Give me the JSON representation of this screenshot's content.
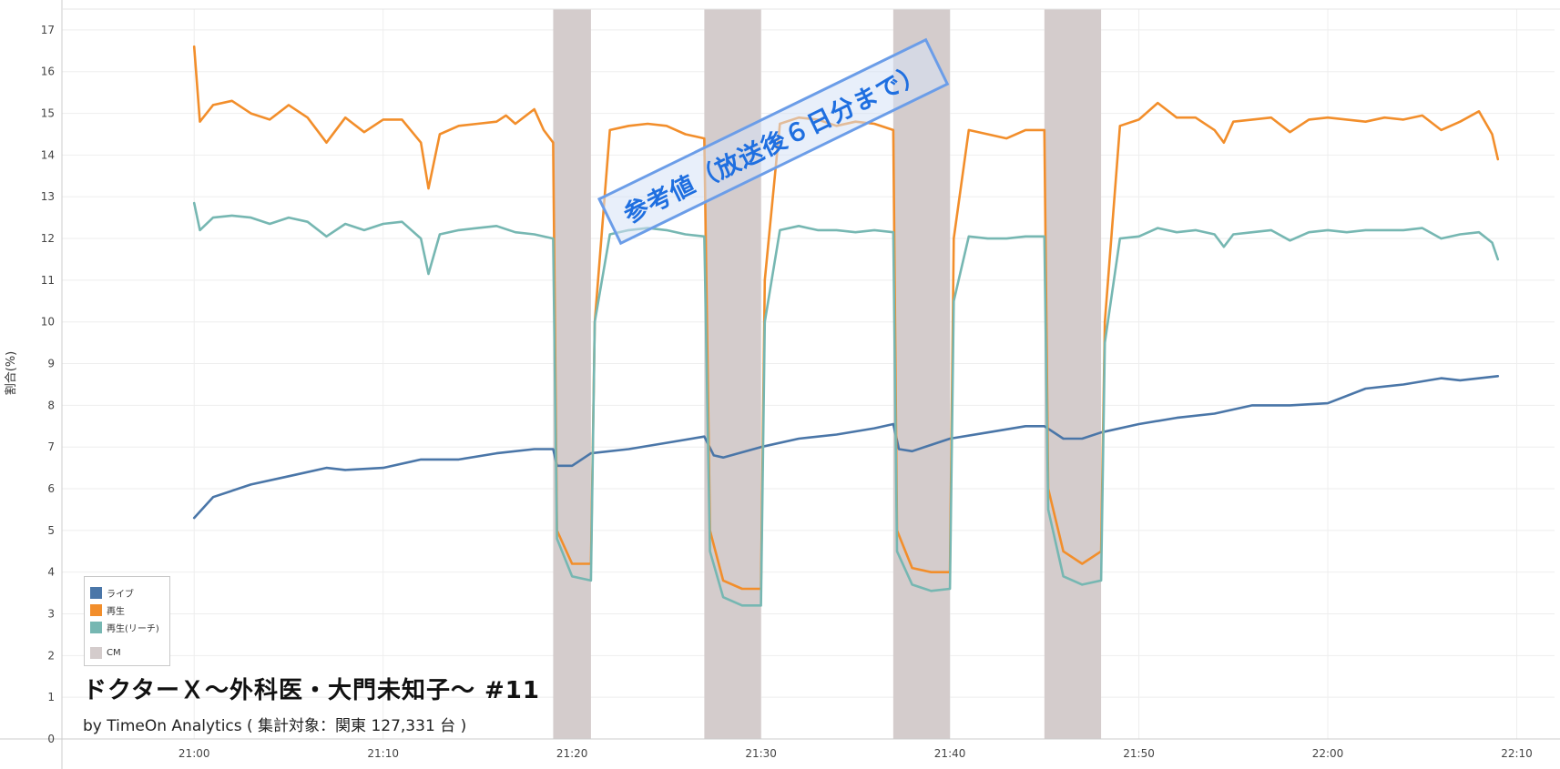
{
  "colors": {
    "live": "#4a76a8",
    "replay": "#f28e2b",
    "reach": "#76b7b2",
    "cm": "#d4cccc",
    "axis": "#cccccc",
    "grid": "#eeeeee",
    "stamp": "#1f6fe0"
  },
  "title": "ドクターＸ～外科医・大門未知子～ #11",
  "subtitle": "by TimeOn Analytics ( 集計対象：関東 127,331 台 )",
  "stamp_text": "参考値（放送後６日分まで）",
  "legend": {
    "items": [
      {
        "label": "ライブ",
        "color": "#4a76a8"
      },
      {
        "label": "再生",
        "color": "#f28e2b"
      },
      {
        "label": "再生(リーチ)",
        "color": "#76b7b2"
      },
      {
        "label": "CM",
        "color": "#d4cccc"
      }
    ]
  },
  "chart_data": {
    "type": "line",
    "title": "ドクターＸ～外科医・大門未知子～ #11",
    "xlabel": "",
    "ylabel": "割合(%)",
    "xlim": [
      "20:53",
      "22:12"
    ],
    "ylim": [
      0,
      17.5
    ],
    "x_ticks": [
      "21:00",
      "21:10",
      "21:20",
      "21:30",
      "21:40",
      "21:50",
      "22:00",
      "22:10"
    ],
    "y_ticks": [
      0,
      1,
      2,
      3,
      4,
      5,
      6,
      7,
      8,
      9,
      10,
      11,
      12,
      13,
      14,
      15,
      16,
      17
    ],
    "grid": true,
    "legend_position": "bottom-left",
    "cm_breaks": [
      {
        "start": "21:19",
        "end": "21:21"
      },
      {
        "start": "21:27",
        "end": "21:30"
      },
      {
        "start": "21:37",
        "end": "21:40"
      },
      {
        "start": "21:45",
        "end": "21:48"
      }
    ],
    "series": [
      {
        "name": "ライブ",
        "points": [
          [
            "21:00",
            5.3
          ],
          [
            "21:01",
            5.8
          ],
          [
            "21:03",
            6.1
          ],
          [
            "21:05",
            6.3
          ],
          [
            "21:07",
            6.5
          ],
          [
            "21:08",
            6.45
          ],
          [
            "21:10",
            6.5
          ],
          [
            "21:12",
            6.7
          ],
          [
            "21:14",
            6.7
          ],
          [
            "21:16",
            6.85
          ],
          [
            "21:18",
            6.95
          ],
          [
            "21:19",
            6.95
          ],
          [
            "21:19.2",
            6.55
          ],
          [
            "21:20",
            6.55
          ],
          [
            "21:21",
            6.85
          ],
          [
            "21:23",
            6.95
          ],
          [
            "21:25",
            7.1
          ],
          [
            "21:27",
            7.25
          ],
          [
            "21:27.5",
            6.8
          ],
          [
            "21:28",
            6.75
          ],
          [
            "21:30",
            7.0
          ],
          [
            "21:32",
            7.2
          ],
          [
            "21:34",
            7.3
          ],
          [
            "21:36",
            7.45
          ],
          [
            "21:37",
            7.55
          ],
          [
            "21:37.3",
            6.95
          ],
          [
            "21:38",
            6.9
          ],
          [
            "21:40",
            7.2
          ],
          [
            "21:42",
            7.35
          ],
          [
            "21:44",
            7.5
          ],
          [
            "21:45",
            7.5
          ],
          [
            "21:46",
            7.2
          ],
          [
            "21:47",
            7.2
          ],
          [
            "21:48",
            7.35
          ],
          [
            "21:50",
            7.55
          ],
          [
            "21:52",
            7.7
          ],
          [
            "21:54",
            7.8
          ],
          [
            "21:56",
            8.0
          ],
          [
            "21:58",
            8.0
          ],
          [
            "22:00",
            8.05
          ],
          [
            "22:02",
            8.4
          ],
          [
            "22:04",
            8.5
          ],
          [
            "22:06",
            8.65
          ],
          [
            "22:07",
            8.6
          ],
          [
            "22:09",
            8.7
          ]
        ]
      },
      {
        "name": "再生",
        "points": [
          [
            "21:00",
            16.6
          ],
          [
            "21:00.3",
            14.8
          ],
          [
            "21:01",
            15.2
          ],
          [
            "21:02",
            15.3
          ],
          [
            "21:03",
            15.0
          ],
          [
            "21:04",
            14.85
          ],
          [
            "21:05",
            15.2
          ],
          [
            "21:06",
            14.9
          ],
          [
            "21:07",
            14.3
          ],
          [
            "21:08",
            14.9
          ],
          [
            "21:09",
            14.55
          ],
          [
            "21:10",
            14.85
          ],
          [
            "21:11",
            14.85
          ],
          [
            "21:12",
            14.3
          ],
          [
            "21:12.4",
            13.2
          ],
          [
            "21:13",
            14.5
          ],
          [
            "21:14",
            14.7
          ],
          [
            "21:15",
            14.75
          ],
          [
            "21:16",
            14.8
          ],
          [
            "21:16.5",
            14.95
          ],
          [
            "21:17",
            14.75
          ],
          [
            "21:18",
            15.1
          ],
          [
            "21:18.5",
            14.6
          ],
          [
            "21:19",
            14.3
          ],
          [
            "21:19.2",
            5.0
          ],
          [
            "21:20",
            4.2
          ],
          [
            "21:21",
            4.2
          ],
          [
            "21:21.2",
            10.0
          ],
          [
            "21:22",
            14.6
          ],
          [
            "21:23",
            14.7
          ],
          [
            "21:24",
            14.75
          ],
          [
            "21:25",
            14.7
          ],
          [
            "21:26",
            14.5
          ],
          [
            "21:27",
            14.4
          ],
          [
            "21:27.3",
            5.0
          ],
          [
            "21:28",
            3.8
          ],
          [
            "21:29",
            3.6
          ],
          [
            "21:30",
            3.6
          ],
          [
            "21:30.2",
            11.0
          ],
          [
            "21:31",
            14.75
          ],
          [
            "21:32",
            14.9
          ],
          [
            "21:33",
            14.85
          ],
          [
            "21:34",
            14.7
          ],
          [
            "21:35",
            14.8
          ],
          [
            "21:36",
            14.75
          ],
          [
            "21:37",
            14.6
          ],
          [
            "21:37.2",
            5.0
          ],
          [
            "21:38",
            4.1
          ],
          [
            "21:39",
            4.0
          ],
          [
            "21:40",
            4.0
          ],
          [
            "21:40.2",
            12.0
          ],
          [
            "21:41",
            14.6
          ],
          [
            "21:42",
            14.5
          ],
          [
            "21:43",
            14.4
          ],
          [
            "21:44",
            14.6
          ],
          [
            "21:45",
            14.6
          ],
          [
            "21:45.2",
            6.0
          ],
          [
            "21:46",
            4.5
          ],
          [
            "21:47",
            4.2
          ],
          [
            "21:48",
            4.5
          ],
          [
            "21:48.2",
            10.0
          ],
          [
            "21:49",
            14.7
          ],
          [
            "21:50",
            14.85
          ],
          [
            "21:51",
            15.25
          ],
          [
            "21:52",
            14.9
          ],
          [
            "21:53",
            14.9
          ],
          [
            "21:54",
            14.6
          ],
          [
            "21:54.5",
            14.3
          ],
          [
            "21:55",
            14.8
          ],
          [
            "21:56",
            14.85
          ],
          [
            "21:57",
            14.9
          ],
          [
            "21:58",
            14.55
          ],
          [
            "21:59",
            14.85
          ],
          [
            "22:00",
            14.9
          ],
          [
            "22:01",
            14.85
          ],
          [
            "22:02",
            14.8
          ],
          [
            "22:03",
            14.9
          ],
          [
            "22:04",
            14.85
          ],
          [
            "22:05",
            14.95
          ],
          [
            "22:06",
            14.6
          ],
          [
            "22:07",
            14.8
          ],
          [
            "22:08",
            15.05
          ],
          [
            "22:08.7",
            14.5
          ],
          [
            "22:09",
            13.9
          ]
        ]
      },
      {
        "name": "再生(リーチ)",
        "points": [
          [
            "21:00",
            12.85
          ],
          [
            "21:00.3",
            12.2
          ],
          [
            "21:01",
            12.5
          ],
          [
            "21:02",
            12.55
          ],
          [
            "21:03",
            12.5
          ],
          [
            "21:04",
            12.35
          ],
          [
            "21:05",
            12.5
          ],
          [
            "21:06",
            12.4
          ],
          [
            "21:07",
            12.05
          ],
          [
            "21:08",
            12.35
          ],
          [
            "21:09",
            12.2
          ],
          [
            "21:10",
            12.35
          ],
          [
            "21:11",
            12.4
          ],
          [
            "21:12",
            12.0
          ],
          [
            "21:12.4",
            11.15
          ],
          [
            "21:13",
            12.1
          ],
          [
            "21:14",
            12.2
          ],
          [
            "21:15",
            12.25
          ],
          [
            "21:16",
            12.3
          ],
          [
            "21:17",
            12.15
          ],
          [
            "21:18",
            12.1
          ],
          [
            "21:19",
            12.0
          ],
          [
            "21:19.2",
            4.8
          ],
          [
            "21:20",
            3.9
          ],
          [
            "21:21",
            3.8
          ],
          [
            "21:21.2",
            10.0
          ],
          [
            "21:22",
            12.1
          ],
          [
            "21:23",
            12.2
          ],
          [
            "21:24",
            12.25
          ],
          [
            "21:25",
            12.2
          ],
          [
            "21:26",
            12.1
          ],
          [
            "21:27",
            12.05
          ],
          [
            "21:27.3",
            4.5
          ],
          [
            "21:28",
            3.4
          ],
          [
            "21:29",
            3.2
          ],
          [
            "21:30",
            3.2
          ],
          [
            "21:30.2",
            10.0
          ],
          [
            "21:31",
            12.2
          ],
          [
            "21:32",
            12.3
          ],
          [
            "21:33",
            12.2
          ],
          [
            "21:34",
            12.2
          ],
          [
            "21:35",
            12.15
          ],
          [
            "21:36",
            12.2
          ],
          [
            "21:37",
            12.15
          ],
          [
            "21:37.2",
            4.5
          ],
          [
            "21:38",
            3.7
          ],
          [
            "21:39",
            3.55
          ],
          [
            "21:40",
            3.6
          ],
          [
            "21:40.2",
            10.5
          ],
          [
            "21:41",
            12.05
          ],
          [
            "21:42",
            12.0
          ],
          [
            "21:43",
            12.0
          ],
          [
            "21:44",
            12.05
          ],
          [
            "21:45",
            12.05
          ],
          [
            "21:45.2",
            5.5
          ],
          [
            "21:46",
            3.9
          ],
          [
            "21:47",
            3.7
          ],
          [
            "21:48",
            3.8
          ],
          [
            "21:48.2",
            9.5
          ],
          [
            "21:49",
            12.0
          ],
          [
            "21:50",
            12.05
          ],
          [
            "21:51",
            12.25
          ],
          [
            "21:52",
            12.15
          ],
          [
            "21:53",
            12.2
          ],
          [
            "21:54",
            12.1
          ],
          [
            "21:54.5",
            11.8
          ],
          [
            "21:55",
            12.1
          ],
          [
            "21:56",
            12.15
          ],
          [
            "21:57",
            12.2
          ],
          [
            "21:58",
            11.95
          ],
          [
            "21:59",
            12.15
          ],
          [
            "22:00",
            12.2
          ],
          [
            "22:01",
            12.15
          ],
          [
            "22:02",
            12.2
          ],
          [
            "22:03",
            12.2
          ],
          [
            "22:04",
            12.2
          ],
          [
            "22:05",
            12.25
          ],
          [
            "22:06",
            12.0
          ],
          [
            "22:07",
            12.1
          ],
          [
            "22:08",
            12.15
          ],
          [
            "22:08.7",
            11.9
          ],
          [
            "22:09",
            11.5
          ]
        ]
      }
    ]
  }
}
